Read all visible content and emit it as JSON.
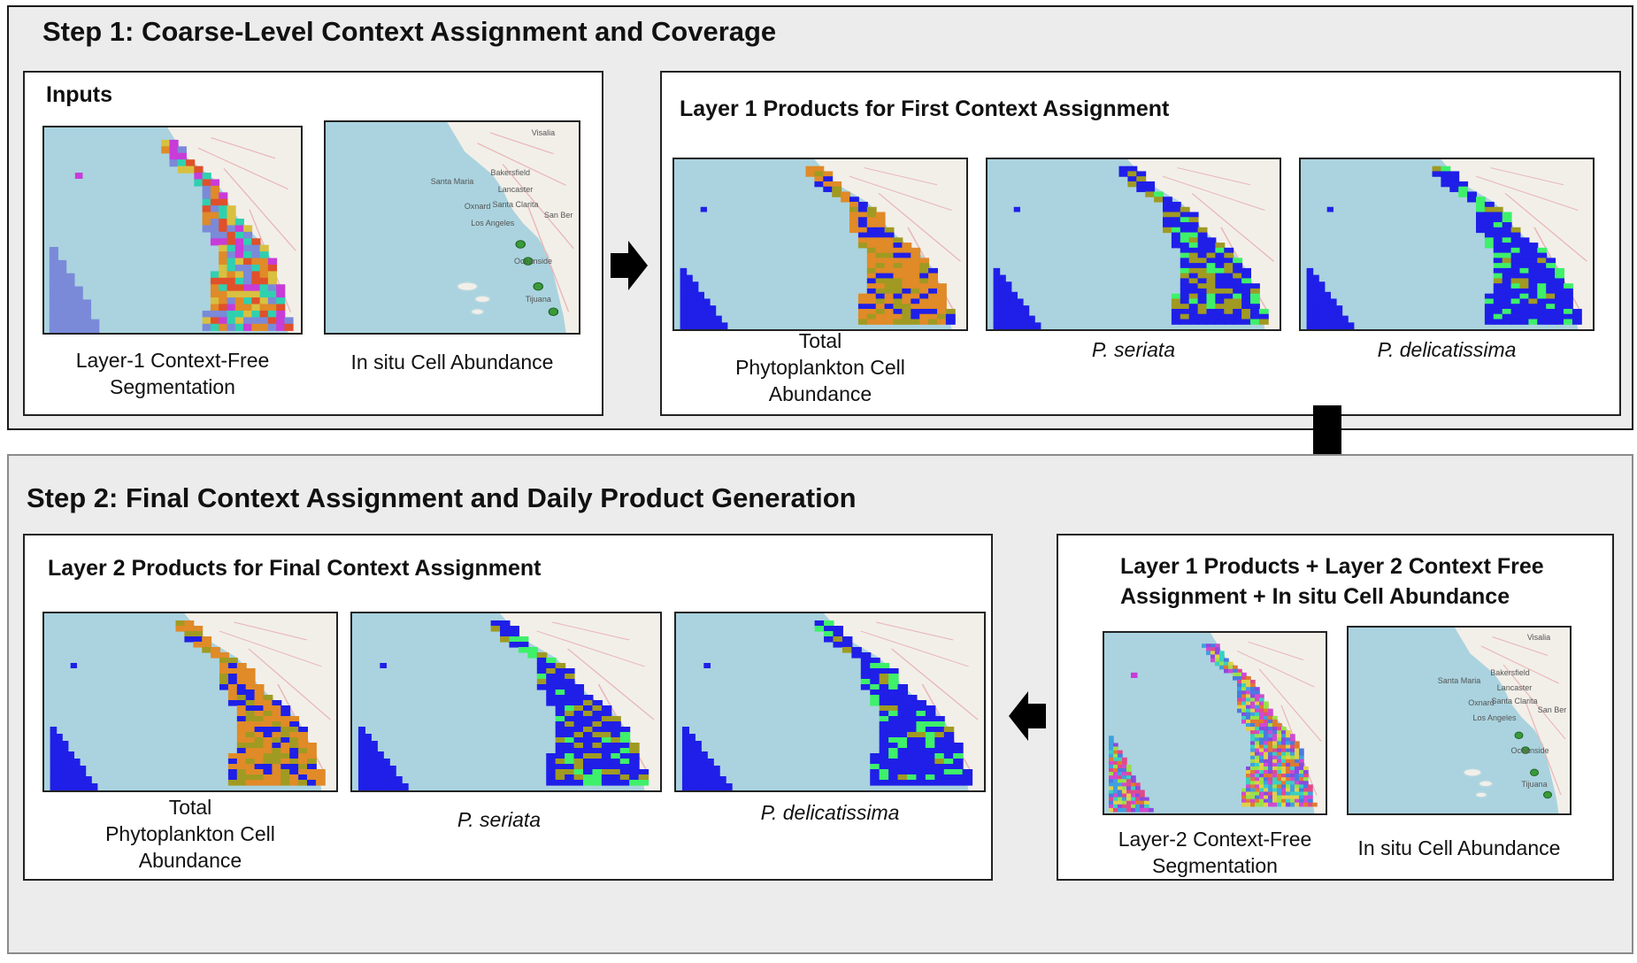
{
  "step1": {
    "title": "Step 1: Coarse-Level Context Assignment and Coverage",
    "inputs": {
      "title": "Inputs",
      "maps": [
        {
          "caption": "Layer-1 Context-Free Segmentation"
        },
        {
          "caption": "In situ Cell Abundance",
          "labels": [
            "Visalia",
            "Santa Maria",
            "Bakersfield",
            "Lancaster",
            "Oxnard",
            "Santa Clarita",
            "San Ber",
            "Los Angeles",
            "Oceanside",
            "Tijuana"
          ]
        }
      ]
    },
    "layer1": {
      "title": "Layer 1 Products for First Context Assignment",
      "maps": [
        {
          "caption": "Total Phytoplankton Cell Abundance"
        },
        {
          "caption": "P. seriata"
        },
        {
          "caption": "P. delicatissima"
        }
      ]
    }
  },
  "step2": {
    "title": "Step 2: Final Context Assignment and Daily Product Generation",
    "layer2": {
      "title": "Layer 2 Products for Final Context Assignment",
      "maps": [
        {
          "caption": "Total Phytoplankton Cell Abundance"
        },
        {
          "caption": "P. seriata"
        },
        {
          "caption": "P. delicatissima"
        }
      ]
    },
    "combined": {
      "title_line1": "Layer 1 Products + Layer 2 Context Free",
      "title_line2": "Assignment + In situ Cell Abundance",
      "maps": [
        {
          "caption": "Layer-2 Context-Free Segmentation"
        },
        {
          "caption": "In situ Cell Abundance",
          "labels": [
            "Visalia",
            "Santa Maria",
            "Bakersfield",
            "Lancaster",
            "Oxnard",
            "Santa Clarita",
            "San Ber",
            "Los Angeles",
            "Oceanside",
            "Tijuana"
          ]
        }
      ]
    }
  },
  "colors": {
    "ocean": "#aad3df",
    "land": "#f2efe9",
    "class_blue": "#1f1fe8",
    "class_green": "#3ef06a",
    "class_olive": "#a09a22",
    "class_orange": "#e08a28",
    "class_magenta": "#c83cd8",
    "class_teal": "#2fd0b0"
  }
}
